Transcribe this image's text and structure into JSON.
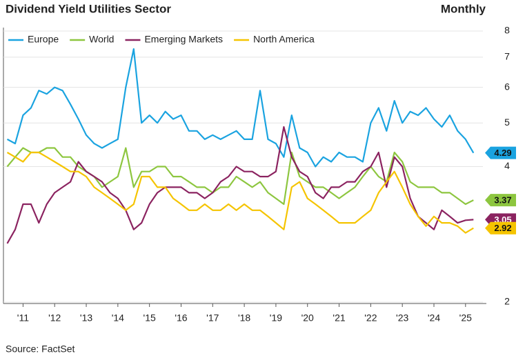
{
  "chart_data": {
    "type": "line",
    "title": "Dividend Yield Utilities Sector",
    "subtitle": "Monthly",
    "source": "Source: FactSet",
    "log_scale": true,
    "legend": "upper left",
    "xlim": [
      2010.88,
      2026.05
    ],
    "xticks": [
      {
        "value": 2011.5,
        "label": "'11"
      },
      {
        "value": 2012.5,
        "label": "'12"
      },
      {
        "value": 2013.5,
        "label": "'13"
      },
      {
        "value": 2014.5,
        "label": "'14"
      },
      {
        "value": 2015.5,
        "label": "'15"
      },
      {
        "value": 2016.5,
        "label": "'16"
      },
      {
        "value": 2017.5,
        "label": "'17"
      },
      {
        "value": 2018.5,
        "label": "'18"
      },
      {
        "value": 2019.5,
        "label": "'19"
      },
      {
        "value": 2020.5,
        "label": "'20"
      },
      {
        "value": 2021.5,
        "label": "'21"
      },
      {
        "value": 2022.5,
        "label": "'22"
      },
      {
        "value": 2023.5,
        "label": "'23"
      },
      {
        "value": 2024.5,
        "label": "'24"
      },
      {
        "value": 2025.5,
        "label": "'25"
      }
    ],
    "ylim": [
      2,
      8
    ],
    "yticks": [
      2,
      4,
      5,
      6,
      7,
      8
    ],
    "x": [
      2011,
      2011.25,
      2011.5,
      2011.75,
      2012,
      2012.25,
      2012.5,
      2012.75,
      2013,
      2013.25,
      2013.5,
      2013.75,
      2014,
      2014.25,
      2014.5,
      2014.75,
      2015,
      2015.25,
      2015.5,
      2015.75,
      2016,
      2016.25,
      2016.5,
      2016.75,
      2017,
      2017.25,
      2017.5,
      2017.75,
      2018,
      2018.25,
      2018.5,
      2018.75,
      2019,
      2019.25,
      2019.5,
      2019.75,
      2020,
      2020.25,
      2020.5,
      2020.75,
      2021,
      2021.25,
      2021.5,
      2021.75,
      2022,
      2022.25,
      2022.5,
      2022.75,
      2023,
      2023.25,
      2023.5,
      2023.75,
      2024,
      2024.25,
      2024.5,
      2024.75,
      2025,
      2025.25,
      2025.5,
      2025.75
    ],
    "series": [
      {
        "name": "Europe",
        "color": "#1aa3e0",
        "values": [
          4.6,
          4.5,
          5.2,
          5.4,
          5.9,
          5.8,
          6.0,
          5.9,
          5.5,
          5.1,
          4.7,
          4.5,
          4.4,
          4.5,
          4.6,
          6.0,
          7.3,
          5.0,
          5.2,
          5.0,
          5.3,
          5.1,
          5.2,
          4.8,
          4.8,
          4.6,
          4.7,
          4.6,
          4.7,
          4.8,
          4.6,
          4.6,
          5.9,
          4.6,
          4.5,
          4.2,
          5.2,
          4.4,
          4.3,
          4.0,
          4.2,
          4.1,
          4.3,
          4.2,
          4.2,
          4.1,
          5.0,
          5.4,
          4.8,
          5.6,
          5.0,
          5.3,
          5.2,
          5.4,
          5.1,
          4.9,
          5.2,
          4.8,
          4.6,
          4.29
        ]
      },
      {
        "name": "World",
        "color": "#8dc63f",
        "values": [
          4.0,
          4.2,
          4.4,
          4.3,
          4.3,
          4.4,
          4.4,
          4.2,
          4.2,
          4.0,
          3.9,
          3.8,
          3.6,
          3.7,
          3.8,
          4.4,
          3.6,
          3.9,
          3.9,
          4.0,
          4.0,
          3.8,
          3.8,
          3.7,
          3.6,
          3.6,
          3.5,
          3.6,
          3.6,
          3.8,
          3.7,
          3.6,
          3.7,
          3.5,
          3.4,
          3.3,
          4.3,
          3.8,
          3.7,
          3.6,
          3.6,
          3.5,
          3.4,
          3.5,
          3.6,
          3.8,
          4.0,
          3.8,
          3.7,
          4.3,
          4.1,
          3.7,
          3.6,
          3.6,
          3.6,
          3.5,
          3.5,
          3.4,
          3.3,
          3.37
        ]
      },
      {
        "name": "Emerging Markets",
        "color": "#8b2360",
        "values": [
          2.7,
          2.9,
          3.3,
          3.3,
          3.0,
          3.3,
          3.5,
          3.6,
          3.7,
          4.1,
          3.9,
          3.8,
          3.7,
          3.5,
          3.4,
          3.2,
          2.9,
          3.0,
          3.3,
          3.5,
          3.6,
          3.6,
          3.6,
          3.5,
          3.5,
          3.4,
          3.5,
          3.7,
          3.8,
          4.0,
          3.9,
          3.9,
          3.8,
          3.8,
          3.9,
          4.9,
          4.2,
          3.9,
          3.8,
          3.5,
          3.4,
          3.6,
          3.6,
          3.7,
          3.7,
          3.9,
          4.0,
          4.3,
          3.6,
          4.2,
          4.0,
          3.4,
          3.1,
          3.0,
          2.9,
          3.2,
          3.1,
          3.0,
          3.04,
          3.05
        ]
      },
      {
        "name": "North America",
        "color": "#f5c400",
        "values": [
          4.3,
          4.2,
          4.1,
          4.3,
          4.3,
          4.2,
          4.1,
          4.0,
          3.9,
          3.9,
          3.8,
          3.6,
          3.5,
          3.4,
          3.3,
          3.2,
          3.3,
          3.8,
          3.8,
          3.6,
          3.6,
          3.4,
          3.3,
          3.2,
          3.2,
          3.3,
          3.2,
          3.2,
          3.3,
          3.2,
          3.3,
          3.2,
          3.2,
          3.1,
          3.0,
          2.9,
          3.6,
          3.7,
          3.4,
          3.3,
          3.2,
          3.1,
          3.0,
          3.0,
          3.0,
          3.1,
          3.2,
          3.5,
          3.7,
          3.9,
          3.6,
          3.3,
          3.1,
          2.95,
          3.1,
          3.0,
          3.0,
          2.95,
          2.85,
          2.92
        ]
      }
    ]
  }
}
